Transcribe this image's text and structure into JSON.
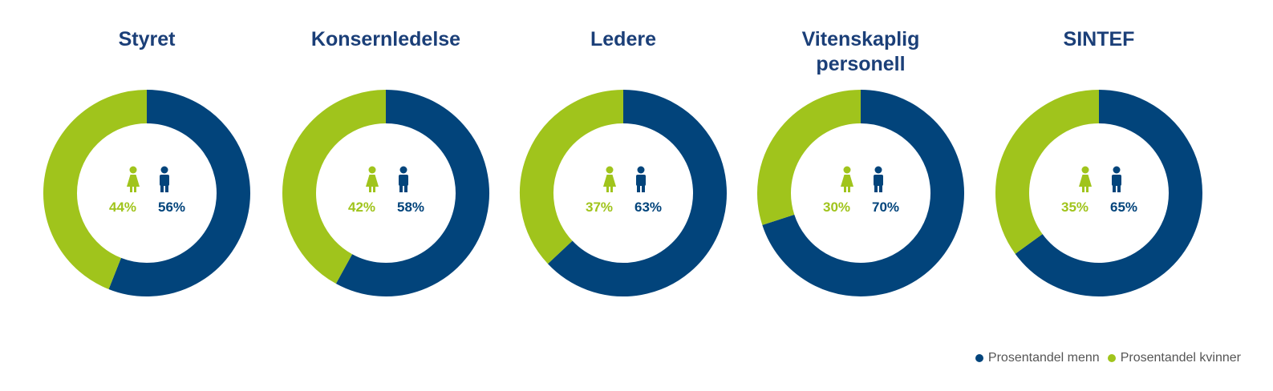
{
  "colors": {
    "men": "#02447b",
    "women": "#a0c41c",
    "title": "#1b3f78"
  },
  "icons": {
    "women": "female-person-icon",
    "men": "male-person-icon"
  },
  "chart_data": [
    {
      "type": "pie",
      "title": "Styret",
      "categories": [
        "Prosentandel kvinner",
        "Prosentandel menn"
      ],
      "values": [
        44,
        56
      ],
      "labels": [
        "44%",
        "56%"
      ]
    },
    {
      "type": "pie",
      "title": "Konsernledelse",
      "categories": [
        "Prosentandel kvinner",
        "Prosentandel menn"
      ],
      "values": [
        42,
        58
      ],
      "labels": [
        "42%",
        "58%"
      ]
    },
    {
      "type": "pie",
      "title": "Ledere",
      "categories": [
        "Prosentandel kvinner",
        "Prosentandel menn"
      ],
      "values": [
        37,
        63
      ],
      "labels": [
        "37%",
        "63%"
      ]
    },
    {
      "type": "pie",
      "title": "Vitenskaplig personell",
      "categories": [
        "Prosentandel kvinner",
        "Prosentandel menn"
      ],
      "values": [
        30,
        70
      ],
      "labels": [
        "30%",
        "70%"
      ]
    },
    {
      "type": "pie",
      "title": "SINTEF",
      "categories": [
        "Prosentandel kvinner",
        "Prosentandel menn"
      ],
      "values": [
        35,
        65
      ],
      "labels": [
        "35%",
        "65%"
      ]
    }
  ],
  "legend": {
    "men": "Prosentandel menn",
    "women": "Prosentandel kvinner",
    "placement": "bottom-right"
  }
}
